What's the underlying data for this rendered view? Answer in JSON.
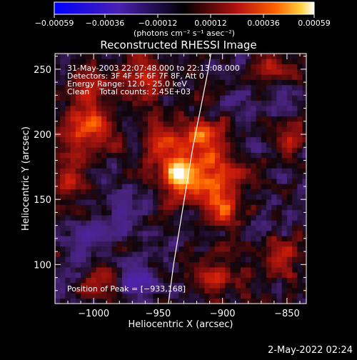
{
  "chart_data": {
    "type": "heatmap",
    "title": "Reconstructed RHESSI Image",
    "xlabel": "Heliocentric X (arcsec)",
    "ylabel": "Heliocentric Y (arcsec)",
    "xlim": [
      -1030,
      -835
    ],
    "ylim": [
      70,
      262
    ],
    "x_ticks": [
      -1000,
      -950,
      -900,
      -850
    ],
    "x_tick_labels": [
      "−1000",
      "−950",
      "−900",
      "−850"
    ],
    "y_ticks": [
      100,
      150,
      200,
      250
    ],
    "y_tick_labels": [
      "100",
      "150",
      "200",
      "250"
    ],
    "colorbar": {
      "range": [
        -0.00059,
        0.00059
      ],
      "ticks": [
        -0.00059,
        -0.00036,
        -0.00012,
        0.00012,
        0.00036,
        0.00059
      ],
      "tick_labels": [
        "−0.00059",
        "−0.00036",
        "−0.00012",
        "0.00012",
        "0.00036",
        "0.00059"
      ],
      "units": "(photons cm⁻² s⁻¹ asec⁻²)"
    },
    "annotations": [
      "31-May-2003 22:07:48.000 to 22:13:08.000",
      "Detectors: 3F 4F 5F 6F 7F 8F, Att 0",
      "Energy Range: 12.0 - 25.0 keV",
      "Clean    Total counts: 2.45E+03"
    ],
    "peak_label": "Position of Peak = [−933,168]",
    "peak": {
      "x": -933,
      "y": 168
    },
    "limb_curve": [
      [
        -942,
        70
      ],
      [
        -938,
        100
      ],
      [
        -933,
        130
      ],
      [
        -928,
        160
      ],
      [
        -923,
        190
      ],
      [
        -917,
        220
      ],
      [
        -911,
        250
      ],
      [
        -909,
        262
      ]
    ],
    "sources": [
      {
        "x": -933,
        "y": 168,
        "sigma": 10,
        "amp": 1.0
      },
      {
        "x": -905,
        "y": 168,
        "sigma": 12,
        "amp": 0.65
      },
      {
        "x": -915,
        "y": 198,
        "sigma": 11,
        "amp": 0.6
      },
      {
        "x": -945,
        "y": 192,
        "sigma": 10,
        "amp": 0.55
      },
      {
        "x": -900,
        "y": 143,
        "sigma": 10,
        "amp": 0.5
      },
      {
        "x": -1005,
        "y": 205,
        "sigma": 14,
        "amp": 0.55
      },
      {
        "x": -1015,
        "y": 165,
        "sigma": 10,
        "amp": 0.45
      },
      {
        "x": -960,
        "y": 240,
        "sigma": 10,
        "amp": 0.45
      },
      {
        "x": -1005,
        "y": 240,
        "sigma": 9,
        "amp": 0.35
      },
      {
        "x": -845,
        "y": 195,
        "sigma": 8,
        "amp": 0.4
      },
      {
        "x": -855,
        "y": 100,
        "sigma": 10,
        "amp": 0.35
      },
      {
        "x": -995,
        "y": 85,
        "sigma": 9,
        "amp": 0.35
      },
      {
        "x": -905,
        "y": 90,
        "sigma": 10,
        "amp": 0.4
      },
      {
        "x": -860,
        "y": 250,
        "sigma": 10,
        "amp": 0.3
      },
      {
        "x": -975,
        "y": 140,
        "sigma": 8,
        "amp": -0.4
      },
      {
        "x": -965,
        "y": 90,
        "sigma": 12,
        "amp": -0.45
      },
      {
        "x": -1010,
        "y": 120,
        "sigma": 10,
        "amp": -0.3
      },
      {
        "x": -870,
        "y": 225,
        "sigma": 9,
        "amp": -0.25
      }
    ]
  },
  "footer": {
    "timestamp": "2-May-2022 02:24"
  }
}
